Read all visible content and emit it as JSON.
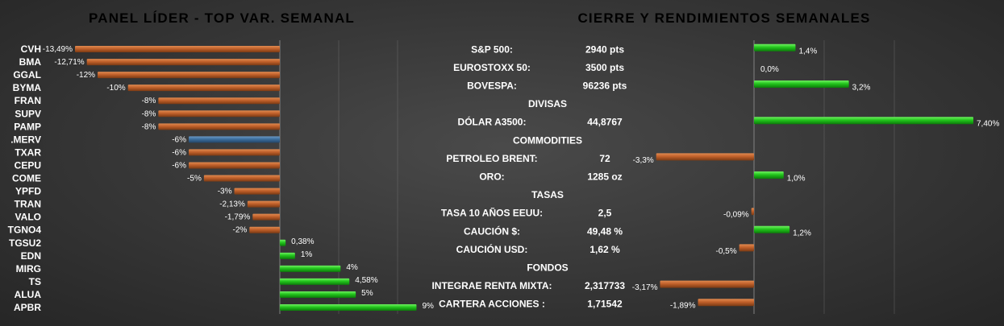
{
  "colors": {
    "negative": "#c0602a",
    "positive": "#22c41c",
    "highlight": "#3c6e9e",
    "gridline": "#8a8a8a"
  },
  "chart_data": [
    {
      "type": "bar",
      "orientation": "horizontal",
      "title": "PANEL LÍDER - TOP VAR. SEMANAL",
      "categories": [
        "CVH",
        "BMA",
        "GGAL",
        "BYMA",
        "FRAN",
        "SUPV",
        "PAMP",
        ".MERV",
        "TXAR",
        "CEPU",
        "COME",
        "YPFD",
        "TRAN",
        "VALO",
        "TGNO4",
        "TGSU2",
        "EDN",
        "MIRG",
        "TS",
        "ALUA",
        "APBR"
      ],
      "values": [
        -13.49,
        -12.71,
        -12,
        -10,
        -8,
        -8,
        -8,
        -6,
        -6,
        -6,
        -5,
        -3,
        -2.13,
        -1.79,
        -2,
        0.38,
        1,
        4,
        4.58,
        5,
        9
      ],
      "data_labels": [
        "-13,49%",
        "-12,71%",
        "-12%",
        "-10%",
        "-8%",
        "-8%",
        "-8%",
        "-6%",
        "-6%",
        "-6%",
        "-5%",
        "-3%",
        "-2,13%",
        "-1,79%",
        "-2%",
        "0,38%",
        "1%",
        "4%",
        "4,58%",
        "5%",
        "9%"
      ],
      "highlight_category": ".MERV",
      "xlim": [
        -13.49,
        9
      ],
      "grid": true
    },
    {
      "type": "bar",
      "orientation": "horizontal",
      "title": "CIERRE Y RENDIMIENTOS  SEMANALES",
      "rows": [
        {
          "kind": "item",
          "label": "S&P 500:",
          "value_text": "2940 pts",
          "pct": 1.4,
          "pct_label": "1,4%"
        },
        {
          "kind": "item",
          "label": "EUROSTOXX 50:",
          "value_text": "3500 pts",
          "pct": 0.0,
          "pct_label": "0,0%"
        },
        {
          "kind": "item",
          "label": "BOVESPA:",
          "value_text": "96236 pts",
          "pct": 3.2,
          "pct_label": "3,2%"
        },
        {
          "kind": "header",
          "label": "DIVISAS"
        },
        {
          "kind": "item",
          "label": "DÓLAR A3500:",
          "value_text": "44,8767",
          "pct": 7.4,
          "pct_label": "7,40%"
        },
        {
          "kind": "header",
          "label": "COMMODITIES"
        },
        {
          "kind": "item",
          "label": "PETROLEO BRENT:",
          "value_text": "72",
          "pct": -3.3,
          "pct_label": "-3,3%"
        },
        {
          "kind": "item",
          "label": "ORO:",
          "value_text": "1285 oz",
          "pct": 1.0,
          "pct_label": "1,0%"
        },
        {
          "kind": "header",
          "label": "TASAS"
        },
        {
          "kind": "item",
          "label": "TASA 10 AÑOS EEUU:",
          "value_text": "2,5",
          "pct": -0.09,
          "pct_label": "-0,09%"
        },
        {
          "kind": "item",
          "label": "CAUCIÓN $:",
          "value_text": "49,48 %",
          "pct": 1.2,
          "pct_label": "1,2%"
        },
        {
          "kind": "item",
          "label": "CAUCIÓN USD:",
          "value_text": "1,62 %",
          "pct": -0.5,
          "pct_label": "-0,5%"
        },
        {
          "kind": "header",
          "label": "FONDOS"
        },
        {
          "kind": "item",
          "label": "INTEGRAE RENTA MIXTA:",
          "value_text": "2,317733",
          "pct": -3.17,
          "pct_label": "-3,17%"
        },
        {
          "kind": "item",
          "label": "CARTERA ACCIONES :",
          "value_text": "1,71542",
          "pct": -1.89,
          "pct_label": "-1,89%"
        }
      ],
      "xlim": [
        -3.3,
        7.4
      ],
      "grid": true
    }
  ]
}
